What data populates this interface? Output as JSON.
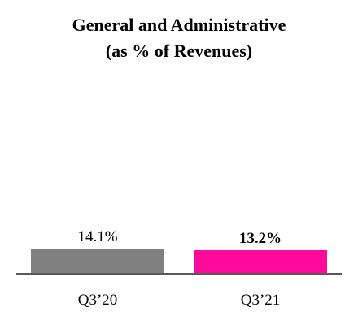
{
  "chart_data": {
    "type": "bar",
    "title_lines": [
      "General and Administrative",
      "(as % of Revenues)"
    ],
    "categories": [
      "Q3’20",
      "Q3’21"
    ],
    "values": [
      14.1,
      13.2
    ],
    "value_labels": [
      "14.1%",
      "13.2%"
    ],
    "bar_colors": [
      "#808080",
      "#ff0a9a"
    ],
    "value_label_bold": [
      false,
      true
    ],
    "xlabel": "",
    "ylabel": "",
    "axis_line_color": "#595959",
    "grid": false,
    "legend": "none"
  }
}
